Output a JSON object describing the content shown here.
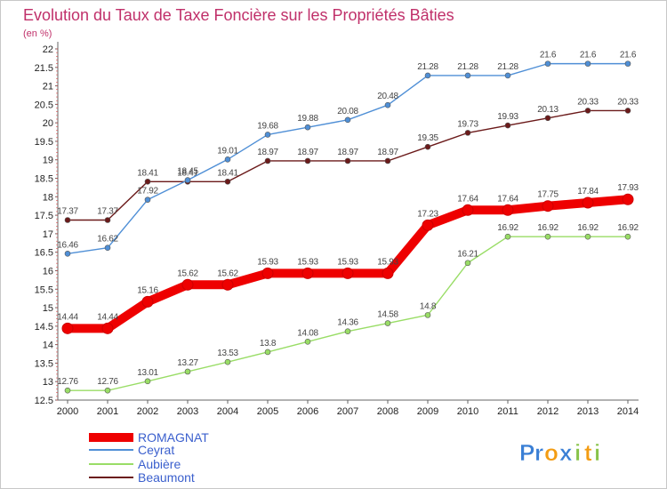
{
  "chart_data": {
    "type": "line",
    "title": "Evolution du Taux de Taxe Foncière sur les Propriétés Bâties",
    "subtitle": "(en %)",
    "xlabel": "",
    "ylabel": "",
    "x": [
      2000,
      2001,
      2002,
      2003,
      2004,
      2005,
      2006,
      2007,
      2008,
      2009,
      2010,
      2011,
      2012,
      2013,
      2014
    ],
    "ylim": [
      12.5,
      22
    ],
    "yticks": [
      "12.5",
      "13",
      "13.5",
      "14",
      "14.5",
      "15",
      "15.5",
      "16",
      "16.5",
      "17",
      "17.5",
      "18",
      "18.5",
      "19",
      "19.5",
      "20",
      "20.5",
      "21",
      "21.5",
      "22"
    ],
    "grid": false,
    "legend_position": "bottom-left",
    "series": [
      {
        "name": "ROMAGNAT",
        "color": "#ee0000",
        "values": [
          14.44,
          14.44,
          15.16,
          15.62,
          15.62,
          15.93,
          15.93,
          15.93,
          15.93,
          17.23,
          17.64,
          17.64,
          17.75,
          17.84,
          17.93
        ],
        "labels": [
          "14.44",
          "14.44",
          "15.16",
          "15.62",
          "15.62",
          "15.93",
          "15.93",
          "15.93",
          "15.93",
          "17.23",
          "17.64",
          "17.64",
          "17.75",
          "17.84",
          "17.93"
        ]
      },
      {
        "name": "Ceyrat",
        "color": "#4f8fd6",
        "values": [
          16.46,
          16.62,
          17.92,
          18.45,
          19.01,
          19.68,
          19.88,
          20.08,
          20.48,
          21.28,
          21.28,
          21.28,
          21.6,
          21.6,
          21.6
        ],
        "labels": [
          "16.46",
          "16.62",
          "17.92",
          "18.45",
          "19.01",
          "19.68",
          "19.88",
          "20.08",
          "20.48",
          "21.28",
          "21.28",
          "21.28",
          "21.6",
          "21.6",
          "21.6"
        ]
      },
      {
        "name": "Aubière",
        "color": "#99dd66",
        "values": [
          12.76,
          12.76,
          13.01,
          13.27,
          13.53,
          13.8,
          14.08,
          14.36,
          14.58,
          14.8,
          16.21,
          16.92,
          16.92,
          16.92,
          16.92
        ],
        "labels": [
          "12.76",
          "12.76",
          "13.01",
          "13.27",
          "13.53",
          "13.8",
          "14.08",
          "14.36",
          "14.58",
          "14.8",
          "16.21",
          "16.92",
          "16.92",
          "16.92",
          "16.92"
        ]
      },
      {
        "name": "Beaumont",
        "color": "#6b1a1a",
        "values": [
          17.37,
          17.37,
          18.41,
          18.41,
          18.41,
          18.97,
          18.97,
          18.97,
          18.97,
          19.35,
          19.73,
          19.93,
          20.13,
          20.33,
          20.33
        ],
        "labels": [
          "17.37",
          "17.37",
          "18.41",
          "18.41",
          "18.41",
          "18.97",
          "18.97",
          "18.97",
          "18.97",
          "19.35",
          "19.73",
          "19.93",
          "20.13",
          "20.33",
          "20.33"
        ]
      }
    ]
  },
  "logo": {
    "letters": [
      "P",
      "r",
      "o",
      "x",
      "i",
      "t",
      "i"
    ],
    "colors": [
      "#3a7fd5",
      "#3a7fd5",
      "#f39c12",
      "#3a7fd5",
      "#88c34a",
      "#f39c12",
      "#88c34a"
    ]
  }
}
